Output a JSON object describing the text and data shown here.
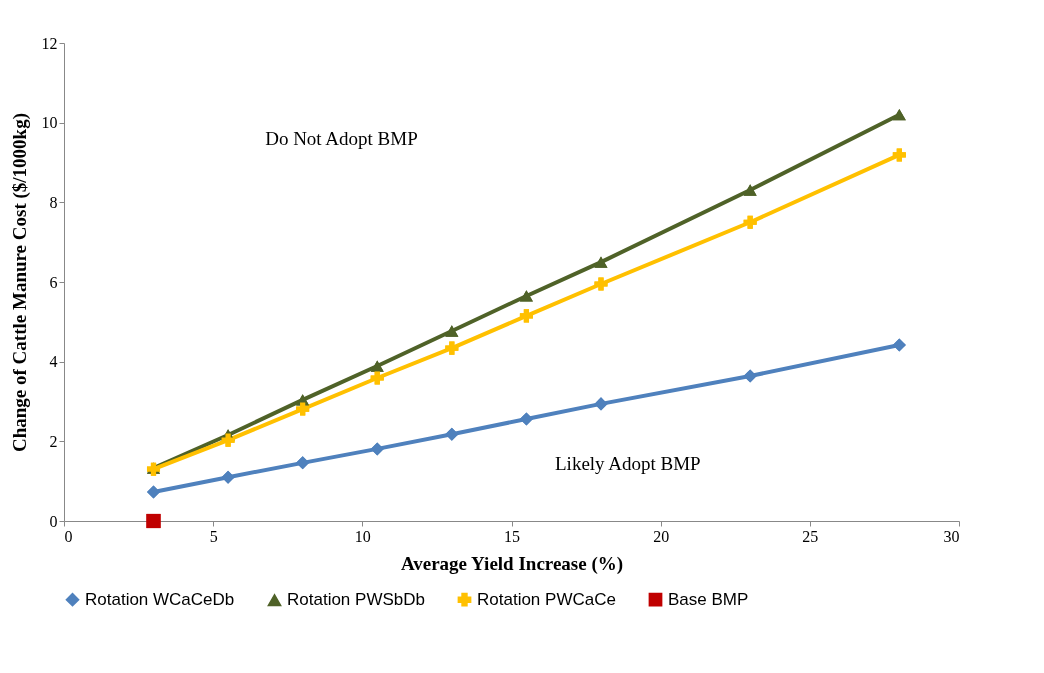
{
  "chart_data": {
    "type": "line",
    "xlabel": "Average Yield Increase (%)",
    "ylabel": "Change of Cattle Manure Cost  ($/1000kg)",
    "x": [
      3,
      5.5,
      8,
      10.5,
      13,
      15.5,
      18,
      23,
      28
    ],
    "series": [
      {
        "name": "Rotation WCaCeDb",
        "color": "#4f81bd",
        "marker": "diamond",
        "values": [
          0.73,
          1.1,
          1.46,
          1.81,
          2.18,
          2.56,
          2.94,
          3.64,
          4.42
        ]
      },
      {
        "name": "Rotation PWSbDb",
        "color": "#4f6228",
        "marker": "triangle",
        "values": [
          1.33,
          2.16,
          3.04,
          3.89,
          4.77,
          5.65,
          6.5,
          8.31,
          10.2
        ]
      },
      {
        "name": "Rotation PWCaCe",
        "color": "#ffc000",
        "marker": "cross",
        "values": [
          1.3,
          2.03,
          2.81,
          3.59,
          4.34,
          5.15,
          5.95,
          7.5,
          9.19
        ]
      },
      {
        "name": "Base BMP",
        "type": "scatter",
        "color": "#c00000",
        "marker": "square",
        "x": [
          3
        ],
        "values": [
          0
        ]
      }
    ],
    "annotations": [
      "Do Not Adopt BMP",
      "Likely Adopt BMP"
    ],
    "xlim": [
      0,
      30
    ],
    "xticks": [
      0,
      5,
      10,
      15,
      20,
      25,
      30
    ],
    "ylim": [
      0,
      12
    ],
    "yticks": [
      0,
      2,
      4,
      6,
      8,
      10,
      12
    ],
    "grid": false,
    "legend": "bottom",
    "line_style": "solid"
  }
}
